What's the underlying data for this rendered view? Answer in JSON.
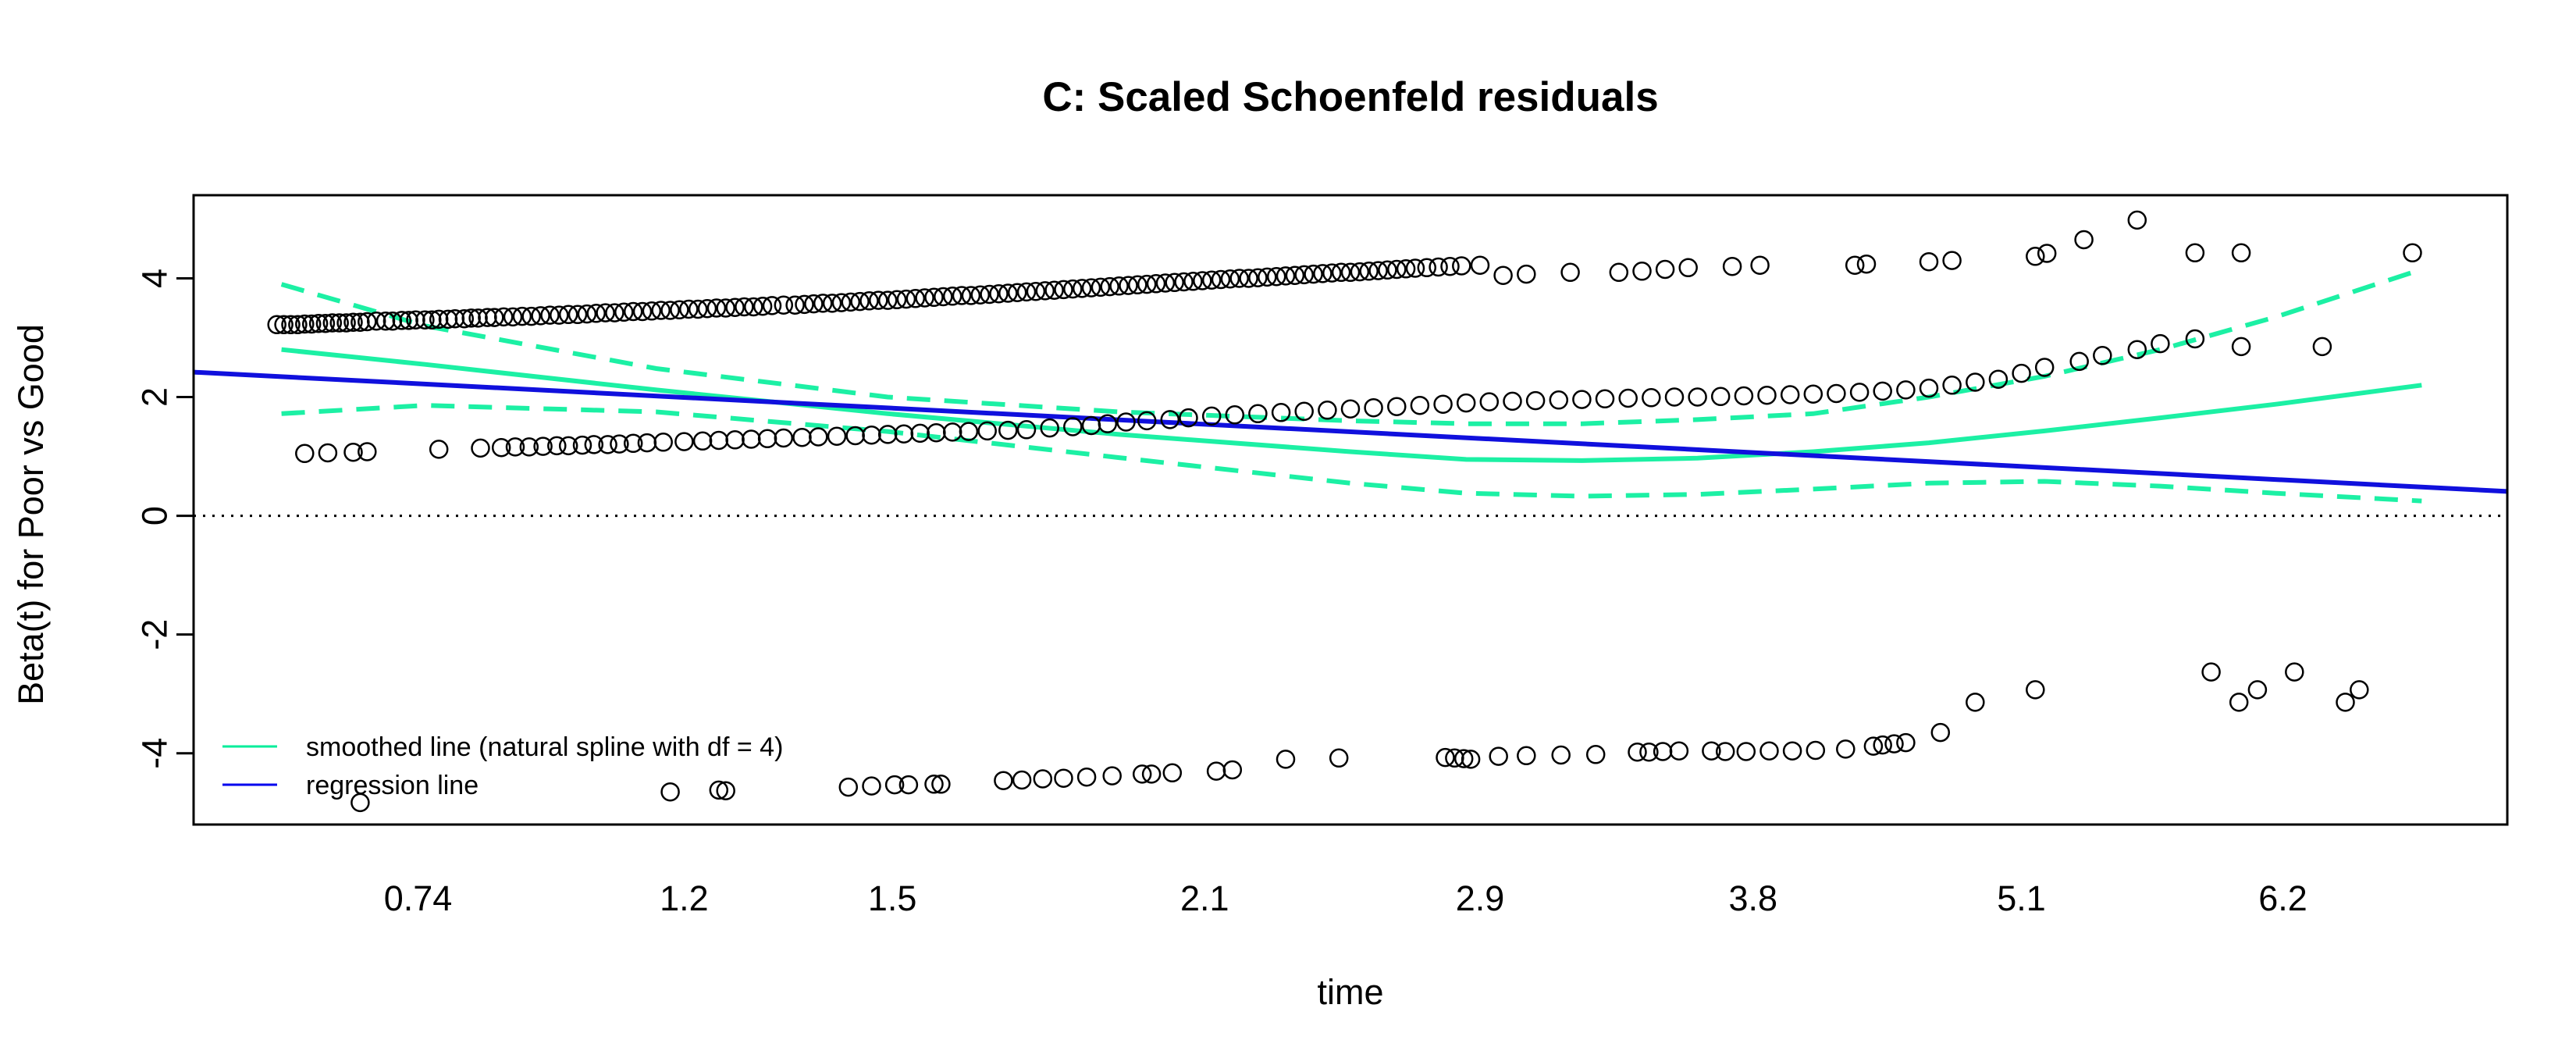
{
  "chart_data": {
    "type": "scatter",
    "title": "C: Scaled Schoenfeld residuals",
    "xlabel": "time",
    "ylabel": "Beta(t) for Poor vs Good",
    "x_tick_labels": [
      "0.74",
      "1.2",
      "1.5",
      "2.1",
      "2.9",
      "3.8",
      "5.1",
      "6.2"
    ],
    "y_ticks": [
      -4,
      -2,
      0,
      2,
      4
    ],
    "y_tick_labels": [
      "-4",
      "-2",
      "0",
      "2",
      "4"
    ],
    "ylim": [
      -5.2,
      5.4
    ],
    "reference_line": {
      "y": 0,
      "style": "dotted"
    },
    "legend": {
      "position": "bottom-left",
      "entries": [
        {
          "label": "smoothed line (natural spline with df = 4)",
          "color": "#00EE9A"
        },
        {
          "label": "regression line",
          "color": "#0000EE"
        }
      ]
    },
    "colors": {
      "smooth": "#1CF0A4",
      "regression": "#1010DD",
      "points": "#000000"
    },
    "note_x_scale": "x values below are given as the rank-transformed time positions; tick labels map rank to time",
    "xlim": [
      0,
      100
    ],
    "x_tick_positions": [
      9.7,
      21.2,
      30.2,
      43.7,
      55.6,
      67.4,
      79.0,
      90.3
    ],
    "regression_line": {
      "x": [
        0,
        100
      ],
      "y": [
        2.42,
        0.41
      ]
    },
    "smoothed_line": {
      "x": [
        3.8,
        10,
        20,
        30,
        40,
        50,
        55,
        60,
        65,
        70,
        75,
        80,
        85,
        90,
        96.3
      ],
      "y": [
        2.8,
        2.55,
        2.12,
        1.72,
        1.37,
        1.08,
        0.95,
        0.93,
        0.97,
        1.08,
        1.23,
        1.43,
        1.65,
        1.88,
        2.2
      ]
    },
    "ci_upper": {
      "x": [
        3.8,
        10,
        20,
        30,
        40,
        50,
        55,
        60,
        65,
        70,
        75,
        80,
        85,
        90,
        96.3
      ],
      "y": [
        3.9,
        3.2,
        2.48,
        2.0,
        1.75,
        1.6,
        1.55,
        1.55,
        1.62,
        1.72,
        2.0,
        2.35,
        2.8,
        3.35,
        4.15
      ]
    },
    "ci_lower": {
      "x": [
        3.8,
        10,
        20,
        30,
        40,
        50,
        55,
        60,
        65,
        70,
        75,
        80,
        85,
        90,
        96.3
      ],
      "y": [
        1.72,
        1.86,
        1.75,
        1.42,
        0.98,
        0.55,
        0.38,
        0.33,
        0.36,
        0.45,
        0.55,
        0.58,
        0.5,
        0.38,
        0.25
      ]
    },
    "series": [
      {
        "x": [
          3.6,
          3.9,
          4.2,
          4.5,
          4.8,
          5.1,
          5.4,
          5.7,
          6.0,
          6.3,
          6.6,
          6.9,
          7.2,
          7.5,
          7.9,
          8.3,
          8.6,
          9.0,
          9.3,
          9.6,
          10.0,
          10.3,
          10.6,
          11.0,
          11.3,
          11.7,
          12.0,
          12.3,
          12.7,
          13.0,
          13.4,
          13.8,
          14.2,
          14.6,
          15.0,
          15.4,
          15.8,
          16.2,
          16.6,
          17.0,
          17.4,
          17.8,
          18.2,
          18.6,
          19.0,
          19.4,
          19.8,
          20.2,
          20.6,
          21.0,
          21.4,
          21.8,
          22.2,
          22.6,
          23.0,
          23.4,
          23.8,
          24.2,
          24.6,
          25.0,
          25.5,
          26.0,
          26.4,
          26.8,
          27.2,
          27.6,
          28.0,
          28.4,
          28.8,
          29.2,
          29.6,
          30.0,
          30.4,
          30.8,
          31.2,
          31.6,
          32.0,
          32.4,
          32.8,
          33.2,
          33.6,
          34.0,
          34.4,
          34.8,
          35.2,
          35.6,
          36.0,
          36.4,
          36.8,
          37.2,
          37.6,
          38.0,
          38.4,
          38.8,
          39.2,
          39.6,
          40.0,
          40.4,
          40.8,
          41.2,
          41.6,
          42.0,
          42.4,
          42.8,
          43.2,
          43.6,
          44.0,
          44.4,
          44.8,
          45.2,
          45.6,
          46.0,
          46.4,
          46.8,
          47.2,
          47.6,
          48.0,
          48.4,
          48.8,
          49.2,
          49.6,
          50.0,
          50.4,
          50.8,
          51.2,
          51.6,
          52.0,
          52.4,
          52.8,
          53.3,
          53.8,
          54.3,
          54.8,
          55.6,
          56.6,
          57.6,
          59.5,
          61.6,
          62.6,
          63.6,
          64.6,
          66.5,
          67.7,
          71.8,
          72.3,
          75.0,
          76.0,
          79.6,
          80.1,
          81.7,
          84.0,
          86.5,
          88.5,
          95.9
        ],
        "y": [
          3.22,
          3.22,
          3.22,
          3.22,
          3.23,
          3.23,
          3.24,
          3.24,
          3.25,
          3.25,
          3.25,
          3.26,
          3.26,
          3.27,
          3.28,
          3.28,
          3.28,
          3.29,
          3.29,
          3.3,
          3.3,
          3.3,
          3.31,
          3.31,
          3.32,
          3.32,
          3.33,
          3.33,
          3.34,
          3.34,
          3.35,
          3.35,
          3.36,
          3.36,
          3.37,
          3.38,
          3.38,
          3.39,
          3.39,
          3.4,
          3.41,
          3.42,
          3.42,
          3.43,
          3.44,
          3.44,
          3.45,
          3.46,
          3.46,
          3.47,
          3.48,
          3.48,
          3.49,
          3.5,
          3.5,
          3.51,
          3.52,
          3.52,
          3.53,
          3.54,
          3.55,
          3.55,
          3.56,
          3.57,
          3.58,
          3.58,
          3.59,
          3.6,
          3.61,
          3.62,
          3.63,
          3.63,
          3.64,
          3.65,
          3.66,
          3.67,
          3.68,
          3.69,
          3.7,
          3.71,
          3.71,
          3.72,
          3.73,
          3.74,
          3.75,
          3.76,
          3.77,
          3.78,
          3.79,
          3.8,
          3.81,
          3.82,
          3.83,
          3.84,
          3.85,
          3.86,
          3.87,
          3.88,
          3.89,
          3.9,
          3.91,
          3.92,
          3.93,
          3.94,
          3.95,
          3.96,
          3.97,
          3.98,
          3.99,
          4.0,
          4.0,
          4.01,
          4.02,
          4.03,
          4.04,
          4.05,
          4.06,
          4.07,
          4.08,
          4.09,
          4.1,
          4.1,
          4.11,
          4.12,
          4.13,
          4.14,
          4.15,
          4.16,
          4.17,
          4.18,
          4.19,
          4.2,
          4.21,
          4.22,
          4.05,
          4.07,
          4.1,
          4.1,
          4.12,
          4.15,
          4.18,
          4.2,
          4.22,
          4.22,
          4.24,
          4.28,
          4.3,
          4.37,
          4.42,
          4.65,
          4.98,
          4.43,
          4.43,
          4.43
        ]
      },
      {
        "x": [
          4.8,
          5.8,
          6.9,
          7.5,
          10.6,
          12.4,
          13.3,
          13.9,
          14.5,
          15.1,
          15.7,
          16.2,
          16.8,
          17.3,
          17.9,
          18.4,
          19.0,
          19.6,
          20.3,
          21.2,
          22.0,
          22.7,
          23.4,
          24.1,
          24.8,
          25.5,
          26.3,
          27.0,
          27.8,
          28.6,
          29.3,
          30.0,
          30.7,
          31.4,
          32.1,
          32.8,
          33.5,
          34.3,
          35.2,
          36.0,
          37.0,
          38.0,
          38.8,
          39.5,
          40.3,
          41.2,
          42.2,
          43.0,
          44.0,
          45.0,
          46.0,
          47.0,
          48.0,
          49.0,
          50.0,
          51.0,
          52.0,
          53.0,
          54.0,
          55.0,
          56.0,
          57.0,
          58.0,
          59.0,
          60.0,
          61.0,
          62.0,
          63.0,
          64.0,
          65.0,
          66.0,
          67.0,
          68.0,
          69.0,
          70.0,
          71.0,
          72.0,
          73.0,
          74.0,
          75.0,
          76.0,
          77.0,
          78.0,
          79.0,
          80.0,
          81.5,
          82.5,
          84.0,
          85.0,
          86.5,
          88.5,
          92.0
        ],
        "y": [
          1.05,
          1.06,
          1.07,
          1.08,
          1.12,
          1.14,
          1.15,
          1.16,
          1.16,
          1.17,
          1.18,
          1.18,
          1.19,
          1.2,
          1.2,
          1.21,
          1.22,
          1.23,
          1.24,
          1.25,
          1.26,
          1.27,
          1.28,
          1.29,
          1.3,
          1.31,
          1.32,
          1.33,
          1.34,
          1.35,
          1.36,
          1.37,
          1.38,
          1.39,
          1.4,
          1.41,
          1.42,
          1.43,
          1.44,
          1.45,
          1.48,
          1.5,
          1.52,
          1.55,
          1.58,
          1.6,
          1.62,
          1.65,
          1.68,
          1.7,
          1.72,
          1.74,
          1.76,
          1.78,
          1.8,
          1.82,
          1.84,
          1.86,
          1.88,
          1.9,
          1.92,
          1.93,
          1.94,
          1.95,
          1.96,
          1.97,
          1.98,
          1.99,
          2.0,
          2.0,
          2.01,
          2.02,
          2.03,
          2.04,
          2.05,
          2.06,
          2.08,
          2.1,
          2.12,
          2.15,
          2.2,
          2.25,
          2.3,
          2.4,
          2.5,
          2.6,
          2.7,
          2.8,
          2.9,
          2.98,
          2.85,
          2.85
        ]
      },
      {
        "x": [
          7.2,
          20.6,
          22.7,
          23.0,
          28.3,
          29.3,
          30.3,
          30.9,
          32.0,
          32.3,
          35.0,
          35.8,
          36.7,
          37.6,
          38.6,
          39.7,
          41.0,
          41.4,
          42.3,
          44.2,
          44.9,
          47.2,
          49.5,
          54.1,
          54.5,
          54.9,
          55.2,
          56.4,
          57.6,
          59.1,
          60.6,
          62.4,
          62.9,
          63.5,
          64.2,
          65.6,
          66.2,
          67.1,
          68.1,
          69.1,
          70.1,
          71.4,
          72.6,
          73.0,
          73.5,
          74.0,
          75.5,
          77.0,
          79.6,
          87.2,
          88.4,
          89.2,
          90.8,
          93.0,
          93.6
        ],
        "y": [
          -4.83,
          -4.65,
          -4.62,
          -4.63,
          -4.57,
          -4.55,
          -4.53,
          -4.53,
          -4.52,
          -4.52,
          -4.46,
          -4.45,
          -4.43,
          -4.42,
          -4.4,
          -4.38,
          -4.35,
          -4.35,
          -4.33,
          -4.3,
          -4.28,
          -4.1,
          -4.08,
          -4.07,
          -4.08,
          -4.09,
          -4.1,
          -4.05,
          -4.04,
          -4.03,
          -4.02,
          -3.98,
          -3.98,
          -3.97,
          -3.96,
          -3.96,
          -3.97,
          -3.97,
          -3.96,
          -3.96,
          -3.95,
          -3.93,
          -3.88,
          -3.86,
          -3.84,
          -3.82,
          -3.65,
          -3.14,
          -2.93,
          -2.63,
          -3.14,
          -2.93,
          -2.63,
          -3.14,
          -2.93
        ]
      }
    ]
  }
}
